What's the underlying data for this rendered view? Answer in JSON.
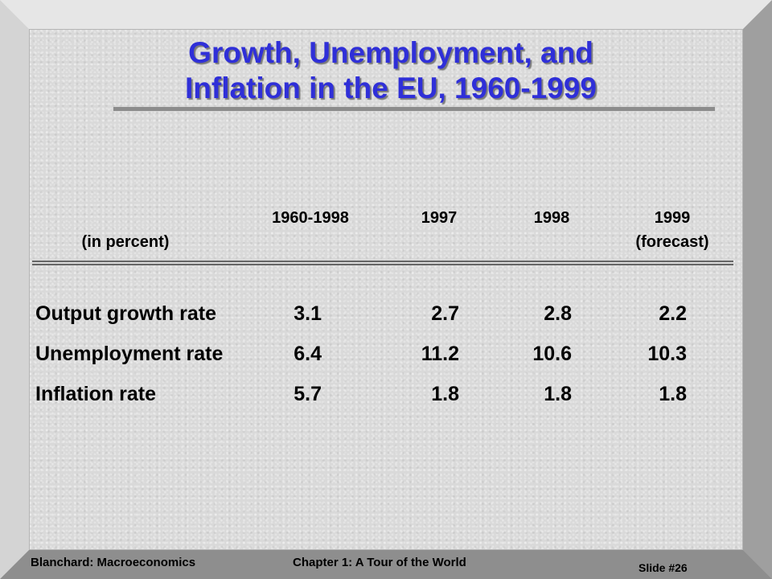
{
  "slide": {
    "title_line1": "Growth, Unemployment, and",
    "title_line2": "Inflation in the EU, 1960-1999",
    "accent_color": "#2f2fd8"
  },
  "table": {
    "unit_label": "(in percent)",
    "columns": [
      {
        "label": "1960-1998",
        "sub": ""
      },
      {
        "label": "1997",
        "sub": ""
      },
      {
        "label": "1998",
        "sub": ""
      },
      {
        "label": "1999",
        "sub": "(forecast)"
      }
    ],
    "rows": [
      {
        "label": "Output growth rate",
        "values": [
          "3.1",
          "2.7",
          "2.8",
          "2.2"
        ]
      },
      {
        "label": "Unemployment rate",
        "values": [
          "6.4",
          "11.2",
          "10.6",
          "10.3"
        ]
      },
      {
        "label": "Inflation rate",
        "values": [
          "5.7",
          "1.8",
          "1.8",
          "1.8"
        ]
      }
    ]
  },
  "footer": {
    "left": "Blanchard: Macroeconomics",
    "center": "Chapter 1: A Tour of the World",
    "right": "Slide #26"
  }
}
